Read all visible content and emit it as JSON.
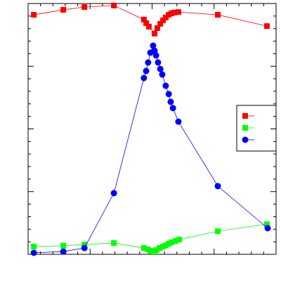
{
  "chart_data": {
    "type": "line",
    "xlim": [
      0,
      100
    ],
    "ylim": [
      0,
      100
    ],
    "xticks": [
      5,
      10,
      15,
      20,
      25,
      30,
      35,
      40,
      45,
      50,
      55,
      60,
      65,
      70,
      75,
      80,
      85,
      90,
      95
    ],
    "yticks": [
      5,
      10,
      15,
      20,
      25,
      30,
      35,
      40,
      45,
      50,
      55,
      60,
      65,
      70,
      75,
      80,
      85,
      90,
      95
    ],
    "legend": "right",
    "series": [
      {
        "color": "#ff0000",
        "marker": "square",
        "x": [
          2.3,
          14.2,
          22.7,
          34.6,
          46.7,
          47.6,
          48.7,
          51.0,
          52.1,
          53.3,
          54.4,
          55.5,
          56.7,
          57.8,
          58.9,
          60.6,
          76.5,
          96.3
        ],
        "values": [
          95.5,
          97.5,
          98.6,
          99.2,
          93.6,
          92.2,
          90.8,
          88.0,
          90.2,
          91.9,
          93.3,
          94.4,
          95.5,
          96.1,
          96.4,
          96.6,
          95.5,
          91.0
        ]
      },
      {
        "color": "#00ff00",
        "marker": "square",
        "x": [
          2.3,
          14.2,
          22.7,
          34.6,
          46.7,
          48.2,
          49.3,
          50.7,
          51.8,
          53.0,
          54.4,
          55.5,
          56.7,
          57.8,
          59.5,
          60.9,
          76.5,
          96.3
        ],
        "values": [
          3.1,
          3.4,
          3.9,
          4.5,
          2.5,
          2.0,
          1.4,
          1.1,
          1.7,
          2.5,
          3.1,
          3.6,
          4.2,
          4.8,
          5.3,
          5.9,
          9.2,
          12.0
        ]
      },
      {
        "color": "#0000ff",
        "marker": "circle",
        "x": [
          2.3,
          14.2,
          22.7,
          34.6,
          46.7,
          47.6,
          48.4,
          49.3,
          50.4,
          51.0,
          51.6,
          52.4,
          53.3,
          54.1,
          55.5,
          56.7,
          57.5,
          58.4,
          60.6,
          76.5,
          96.6
        ],
        "values": [
          0.6,
          1.1,
          2.5,
          24.4,
          70.3,
          73.1,
          76.5,
          80.4,
          83.2,
          81.2,
          79.3,
          76.5,
          73.9,
          71.7,
          67.2,
          63.9,
          60.8,
          58.3,
          52.9,
          27.2,
          10.4
        ]
      }
    ]
  }
}
